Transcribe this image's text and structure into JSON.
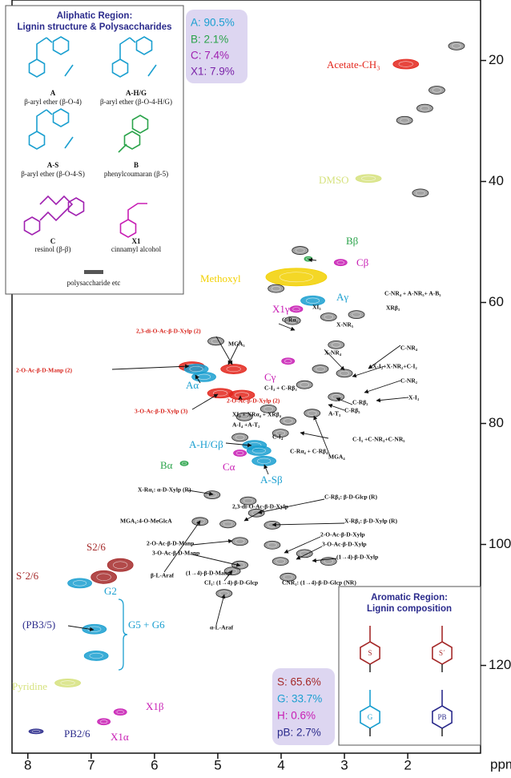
{
  "chart_data": {
    "type": "hsqc",
    "xlabel": "ppm",
    "xlim": [
      8.25,
      0.85
    ],
    "ylim": [
      10,
      134.5
    ],
    "xticks": [
      8,
      7,
      6,
      5,
      4,
      3,
      2
    ],
    "yticks": [
      20,
      40,
      60,
      80,
      100,
      120
    ],
    "series": [
      {
        "color": "#e3261c",
        "x": [
          2.03,
          5.41,
          4.75,
          4.96,
          4.62
        ],
        "values": [
          20.6,
          70.6,
          71.0,
          75.0,
          75.3
        ]
      },
      {
        "color": "#1a9fd0",
        "x": [
          3.5,
          5.34,
          5.22,
          4.42,
          4.27,
          4.35,
          7.18,
          6.95,
          6.92
        ],
        "values": [
          59.7,
          71.0,
          72.3,
          83.6,
          86.2,
          84.5,
          106.4,
          114.0,
          118.4
        ]
      },
      {
        "color": "#a52a2a",
        "x": [
          6.54,
          6.8
        ],
        "values": [
          103.4,
          105.4
        ]
      },
      {
        "color": "#2b2b8c",
        "x": [
          7.87
        ],
        "values": [
          130.9
        ]
      },
      {
        "color": "#c81eb4",
        "x": [
          3.06,
          3.76,
          3.89,
          4.65,
          6.54,
          6.8
        ],
        "values": [
          53.4,
          61.1,
          69.7,
          84.9,
          127.7,
          129.3
        ]
      },
      {
        "color": "#2aa34a",
        "x": [
          3.57,
          5.53
        ],
        "values": [
          52.8,
          86.6
        ]
      },
      {
        "color": "#d6e27e",
        "x": [
          2.62,
          7.37
        ],
        "values": [
          39.5,
          122.9
        ]
      },
      {
        "color": "#f2d000",
        "x": [
          3.76
        ],
        "values": [
          55.8
        ]
      },
      {
        "color": "#555555",
        "x": [
          1.23,
          1.54,
          1.73,
          2.05,
          1.8,
          3.7,
          4.08,
          3.25,
          3.82,
          2.81,
          3.13,
          3.0,
          3.38,
          3.63,
          3.13,
          3.51,
          3.89,
          4.2,
          4.01,
          4.58,
          4.65,
          5.03,
          4.39,
          4.84,
          4.14,
          4.65,
          4.14,
          3.63,
          4.01,
          3.25,
          3.89,
          4.65,
          4.77,
          4.9,
          4.52,
          5.28,
          5.09
        ],
        "values": [
          17.6,
          24.9,
          27.9,
          29.9,
          41.9,
          51.4,
          57.7,
          62.4,
          63.0,
          62.0,
          67.0,
          71.7,
          71.0,
          73.6,
          75.6,
          78.3,
          79.6,
          77.6,
          81.6,
          78.9,
          82.3,
          66.4,
          94.8,
          96.6,
          96.8,
          99.5,
          100.1,
          101.5,
          102.8,
          102.8,
          105.4,
          103.4,
          104.4,
          108.1,
          92.8,
          96.2,
          91.8
        ]
      }
    ],
    "annotations": [
      "Acetate-CH₃",
      "DMSO",
      "Bβ",
      "Cβ",
      "Methoxyl",
      "Aγ",
      "X1γ",
      "Aα",
      "Cγ",
      "A-H/Gβ",
      "Bα",
      "Cα",
      "A-Sβ",
      "S2/6",
      "S´2/6",
      "G2",
      "(PB3/5)",
      "G5 + G6",
      "Pyridine",
      "X1β",
      "PB2/6",
      "X1α",
      "2,3-di-O-Ac-β-D-Xylp (2)",
      "2-O-Ac-β-D-Manp (2)",
      "3-O-Ac-β-D-Xylp (3)",
      "2-O-Ac-β-D-Xylp (2)",
      "C-NR₄ + A-NR₅+ A-B₅",
      "XI₅",
      "XRβ₃",
      "C-Rα₅",
      "X-NR₅",
      "MGA₅",
      "X-NR₄",
      "C-NR₄",
      "X-I₂+X-NR₂+C-I₂",
      "C-I₃ + C-Rβ₃",
      "C-NR₂",
      "X-I₃",
      "C-Rβ₂",
      "C-Rβ₅",
      "XI₄ + XRα₄ + XRβ₄",
      "A-T₃",
      "A-I₄ +A-T₂",
      "C-I₄",
      "C-I₅ +C-NR₃+C-NR₅",
      "C-Rα₄ + C-Rβ₄",
      "MGA₄",
      "X-Rα₁: α-D-Xylp (R)",
      "C-Rβ₁: β-D-Glcp (R)",
      "2,3-di-O-Ac-β-D-Xylp",
      "MGA₁:4-O-MeGlcA",
      "X-Rβ₁: β-D-Xylp (R)",
      "2-O-Ac-β-D-Manp",
      "2-O-Ac-β-D-Xylp",
      "3-O-Ac-β-D-Xylp",
      "3-O-Ac-β-D-Manp",
      "(1→4)-β-D-Xylp",
      "β-L-Araf",
      "(1→4)-β-D-Manp",
      "CI₁: (1→4)-β-D-Glcp",
      "CNR₁: (1→4)-β-D-Glcp (NR)",
      "α-L-Araf"
    ]
  },
  "aliphatic_inset": {
    "title": [
      "Aliphatic Region:",
      "Lignin structure & Polysaccharides"
    ],
    "structures": [
      {
        "label": "A",
        "caption": "β-aryl ether (β-O-4)"
      },
      {
        "label": "A-H/G",
        "caption": "β-aryl ether (β-O-4-H/G)"
      },
      {
        "label": "A-S",
        "caption": "β-aryl ether (β-O-4-S)"
      },
      {
        "label": "B",
        "caption": "phenylcoumaran (β-5)"
      },
      {
        "label": "C",
        "caption": "resinol (β-β)"
      },
      {
        "label": "X1",
        "caption": "cinnamyl alcohol"
      }
    ],
    "footnote": "polysaccharide etc"
  },
  "aliphatic_percentages": [
    "A: 90.5%",
    "B: 2.1%",
    "C: 7.4%",
    "X1: 7.9%"
  ],
  "aromatic_percentages": [
    "S: 65.6%",
    "G: 33.7%",
    "H: 0.6%",
    "pB: 2.7%"
  ],
  "aromatic_inset": {
    "title": [
      "Aromatic Region:",
      "Lignin composition"
    ],
    "rings": [
      "S",
      "S´",
      "G",
      "PB"
    ]
  }
}
